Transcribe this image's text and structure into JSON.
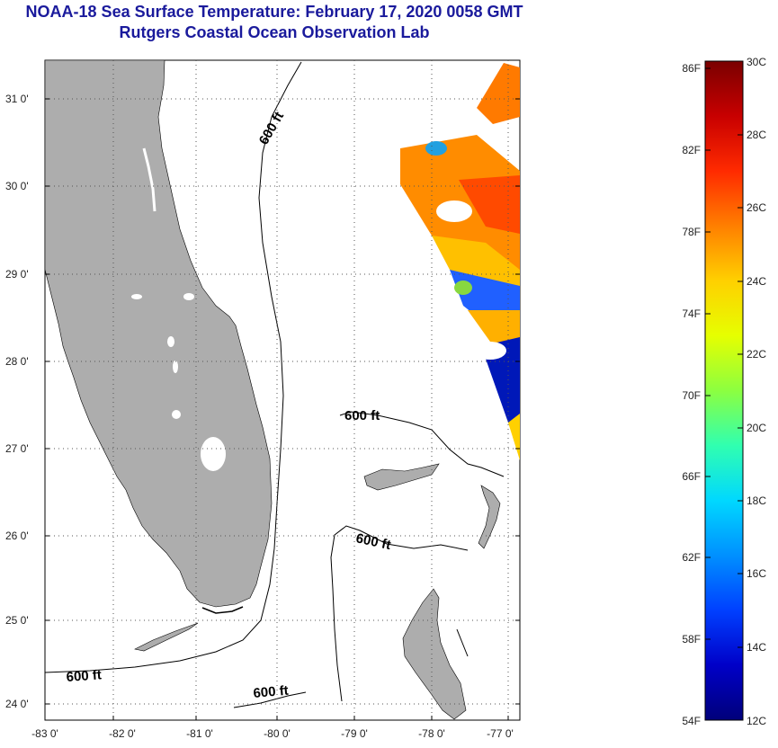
{
  "header": {
    "title": "NOAA-18 Sea Surface Temperature:  February 17, 2020 0058 GMT",
    "subtitle": "Rutgers Coastal Ocean Observation Lab"
  },
  "map": {
    "lon_ticks": [
      "-83 0'",
      "-82 0'",
      "-81 0'",
      "-80 0'",
      "-79 0'",
      "-78 0'",
      "-77 0'"
    ],
    "lat_ticks": [
      "31 0'",
      "30 0'",
      "29 0'",
      "28 0'",
      "27 0'",
      "26 0'",
      "25 0'",
      "24 0'"
    ],
    "contour_label": "600 ft",
    "colors": {
      "land": "#adadad",
      "coast": "#000000",
      "grid": "#555555"
    }
  },
  "colorbar": {
    "fahrenheit_labels": [
      "86F",
      "82F",
      "78F",
      "74F",
      "70F",
      "66F",
      "62F",
      "58F",
      "54F"
    ],
    "celsius_labels": [
      "30C",
      "28C",
      "26C",
      "24C",
      "22C",
      "20C",
      "18C",
      "16C",
      "14C",
      "12C"
    ],
    "stops": [
      "#7a0000",
      "#c80000",
      "#ff2a00",
      "#ff7f00",
      "#ffd000",
      "#e6ff00",
      "#8cff40",
      "#30ffb0",
      "#00d8ff",
      "#0090ff",
      "#0040ff",
      "#0000c8",
      "#00007a"
    ]
  }
}
